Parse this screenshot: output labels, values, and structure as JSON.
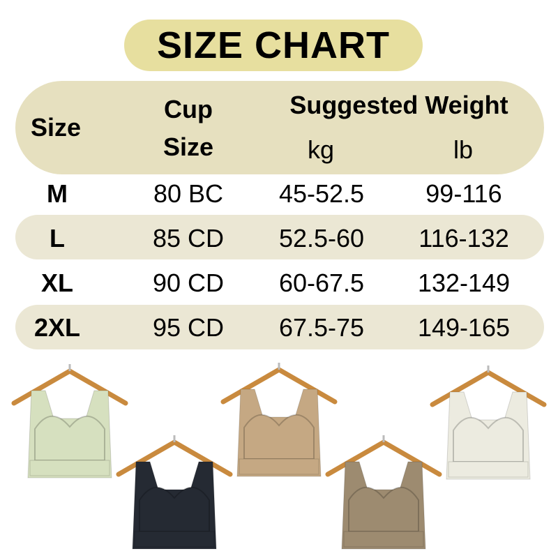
{
  "title": "SIZE CHART",
  "header": {
    "size": "Size",
    "cup_line1": "Cup",
    "cup_line2": "Size",
    "weight": "Suggested Weight",
    "kg": "kg",
    "lb": "lb"
  },
  "rows": [
    {
      "size": "M",
      "cup": "80 BC",
      "kg": "45-52.5",
      "lb": "99-116"
    },
    {
      "size": "L",
      "cup": "85 CD",
      "kg": "52.5-60",
      "lb": "116-132"
    },
    {
      "size": "XL",
      "cup": "90 CD",
      "kg": "60-67.5",
      "lb": "132-149"
    },
    {
      "size": "2XL",
      "cup": "95 CD",
      "kg": "67.5-75",
      "lb": "149-165"
    }
  ],
  "colors": {
    "title_bg": "#e7df9f",
    "header_bg": "#e6e0bf",
    "stripe_bg": "#ebe7d4"
  },
  "products": [
    {
      "color_name": "green",
      "hex": "#d6e0bf"
    },
    {
      "color_name": "black",
      "hex": "#252a33"
    },
    {
      "color_name": "tan",
      "hex": "#c5a883"
    },
    {
      "color_name": "taupe",
      "hex": "#9d8b70"
    },
    {
      "color_name": "cream",
      "hex": "#ecebe0"
    }
  ]
}
